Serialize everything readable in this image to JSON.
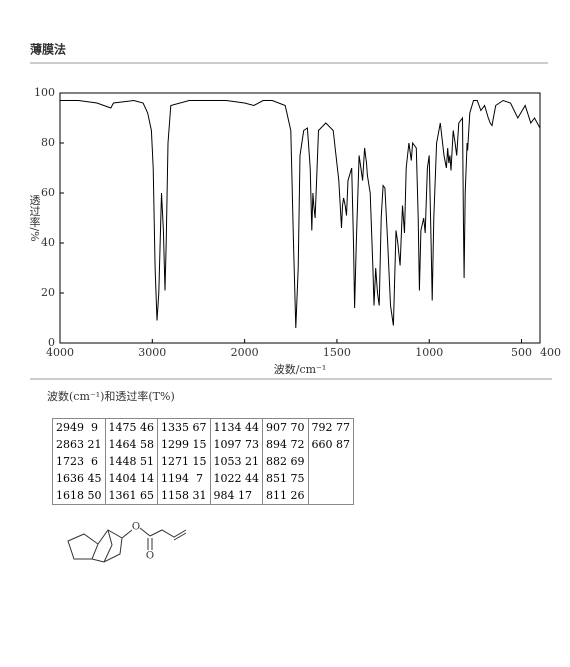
{
  "header": {
    "title": "薄膜法"
  },
  "chart_data": {
    "type": "line",
    "color": "#000000",
    "ylabel": "透过率/%",
    "xlabel": "波数/cm⁻¹",
    "xlim": [
      4000,
      400
    ],
    "x_scale_change": 2000,
    "ylim": [
      0,
      100
    ],
    "xticks": [
      4000,
      3000,
      2000,
      1500,
      1000,
      500,
      400
    ],
    "yticks": [
      0,
      20,
      40,
      60,
      80,
      100
    ],
    "x": [
      4000,
      3800,
      3600,
      3450,
      3420,
      3200,
      3100,
      3050,
      3010,
      2990,
      2970,
      2949,
      2930,
      2900,
      2880,
      2863,
      2850,
      2830,
      2800,
      2600,
      2400,
      2200,
      2000,
      1950,
      1900,
      1850,
      1780,
      1750,
      1735,
      1723,
      1710,
      1700,
      1680,
      1660,
      1645,
      1636,
      1630,
      1625,
      1618,
      1610,
      1600,
      1560,
      1520,
      1490,
      1475,
      1470,
      1464,
      1455,
      1448,
      1440,
      1420,
      1410,
      1404,
      1395,
      1380,
      1370,
      1361,
      1350,
      1340,
      1335,
      1320,
      1305,
      1299,
      1290,
      1280,
      1271,
      1260,
      1250,
      1240,
      1225,
      1210,
      1194,
      1180,
      1170,
      1158,
      1145,
      1134,
      1125,
      1110,
      1097,
      1090,
      1070,
      1060,
      1053,
      1045,
      1030,
      1022,
      1010,
      1000,
      990,
      984,
      975,
      960,
      940,
      920,
      907,
      900,
      894,
      888,
      882,
      870,
      860,
      851,
      840,
      820,
      815,
      811,
      805,
      795,
      792,
      780,
      760,
      740,
      720,
      700,
      680,
      670,
      660,
      640,
      600,
      560,
      520,
      480,
      450,
      430,
      400
    ],
    "values": [
      97,
      97,
      96,
      94,
      96,
      97,
      96,
      92,
      85,
      70,
      30,
      9,
      20,
      60,
      45,
      21,
      40,
      80,
      95,
      97,
      97,
      97,
      96,
      95,
      97,
      97,
      95,
      85,
      40,
      6,
      30,
      75,
      85,
      86,
      70,
      45,
      60,
      55,
      50,
      65,
      85,
      88,
      85,
      65,
      46,
      55,
      58,
      55,
      51,
      65,
      70,
      40,
      14,
      40,
      75,
      70,
      65,
      78,
      72,
      67,
      60,
      30,
      15,
      30,
      20,
      15,
      50,
      63,
      62,
      40,
      15,
      7,
      45,
      40,
      31,
      55,
      44,
      70,
      80,
      73,
      80,
      78,
      50,
      21,
      45,
      50,
      44,
      70,
      75,
      40,
      17,
      50,
      80,
      88,
      75,
      70,
      78,
      72,
      75,
      69,
      85,
      80,
      75,
      88,
      90,
      50,
      26,
      60,
      80,
      77,
      92,
      97,
      97,
      93,
      95,
      90,
      88,
      87,
      95,
      97,
      96,
      90,
      95,
      88,
      90,
      86
    ]
  },
  "table": {
    "title": "波数(cm⁻¹)和透过率(T%)",
    "rows": [
      [
        "2949  9",
        "1475 46",
        "1335 67",
        "1134 44",
        "907 70",
        "792 77"
      ],
      [
        "2863 21",
        "1464 58",
        "1299 15",
        "1097 73",
        "894 72",
        "660 87"
      ],
      [
        "1723  6",
        "1448 51",
        "1271 15",
        "1053 21",
        "882 69"
      ],
      [
        "1636 45",
        "1404 14",
        "1194  7",
        "1022 44",
        "851 75"
      ],
      [
        "1618 50",
        "1361 65",
        "1158 31",
        "984 17",
        "811 26"
      ]
    ]
  },
  "structure": {
    "atoms": [
      "O",
      "O"
    ]
  }
}
